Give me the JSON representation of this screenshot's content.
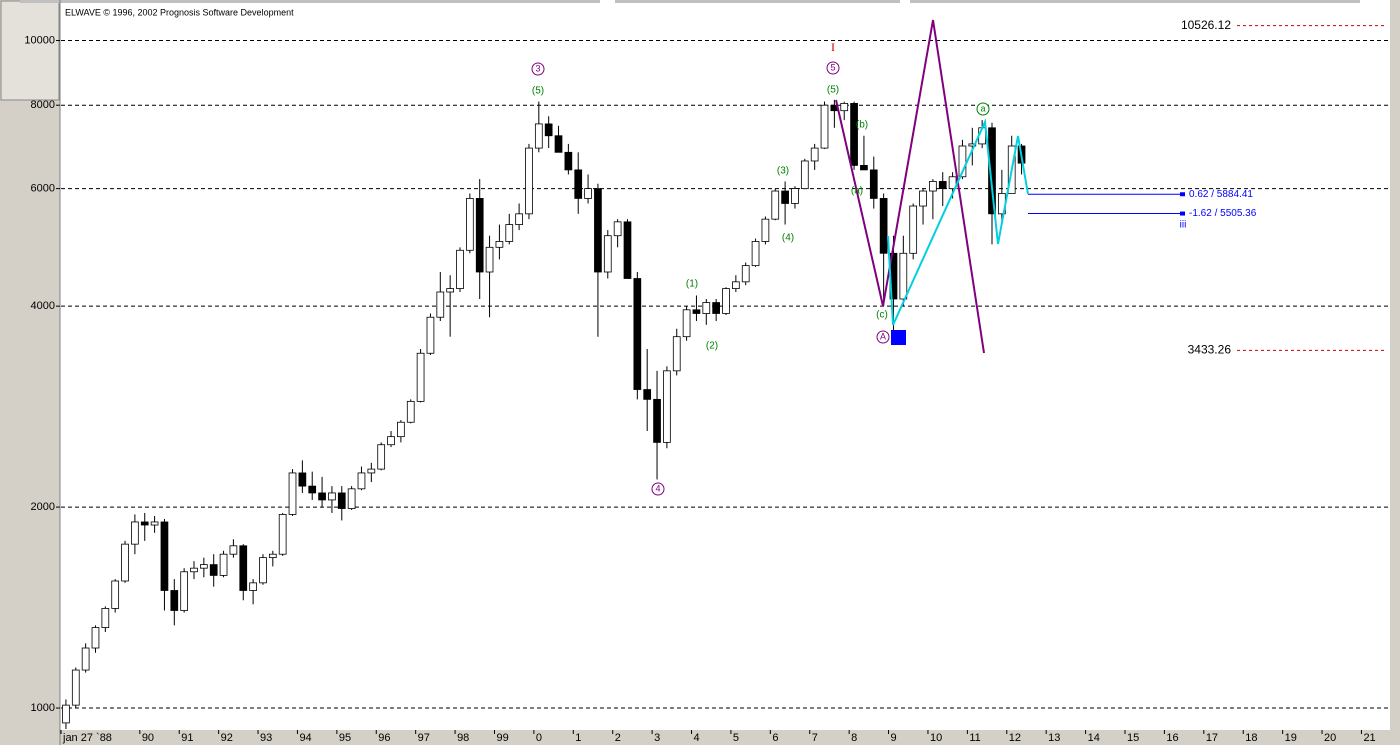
{
  "header": "ELWAVE © 1996, 2002 Prognosis Software Development",
  "annotations": [
    {
      "text": "3"
    },
    {
      "text": "(5)"
    },
    {
      "text": "I"
    },
    {
      "text": "5"
    },
    {
      "text": "(5)"
    },
    {
      "text": "(b)"
    },
    {
      "text": "(a)"
    },
    {
      "text": "(3)"
    },
    {
      "text": "(4)"
    },
    {
      "text": "(1)"
    },
    {
      "text": "(2)"
    },
    {
      "text": "4"
    },
    {
      "text": "(c)"
    },
    {
      "text": "A"
    },
    {
      "text": "a"
    },
    {
      "text": "iii"
    }
  ],
  "chart_data": {
    "type": "candlestick",
    "log_scale": true,
    "grid": true,
    "up_color": "#ffffff",
    "down_color": "#000000",
    "xlim": [
      1988,
      2021.75
    ],
    "ylim": [
      927,
      11500
    ],
    "yticks": [
      1000,
      2000,
      4000,
      6000,
      8000,
      10000
    ],
    "xticks": [
      {
        "value": 1988,
        "label": "jan 27 `88"
      },
      {
        "value": 1990,
        "label": "90"
      },
      {
        "value": 1991,
        "label": "91"
      },
      {
        "value": 1992,
        "label": "92"
      },
      {
        "value": 1993,
        "label": "93"
      },
      {
        "value": 1994,
        "label": "94"
      },
      {
        "value": 1995,
        "label": "95"
      },
      {
        "value": 1996,
        "label": "96"
      },
      {
        "value": 1997,
        "label": "97"
      },
      {
        "value": 1998,
        "label": "98"
      },
      {
        "value": 1999,
        "label": "99"
      },
      {
        "value": 2000,
        "label": "0"
      },
      {
        "value": 2001,
        "label": "1"
      },
      {
        "value": 2002,
        "label": "2"
      },
      {
        "value": 2003,
        "label": "3"
      },
      {
        "value": 2004,
        "label": "4"
      },
      {
        "value": 2005,
        "label": "5"
      },
      {
        "value": 2006,
        "label": "6"
      },
      {
        "value": 2007,
        "label": "7"
      },
      {
        "value": 2008,
        "label": "8"
      },
      {
        "value": 2009,
        "label": "9"
      },
      {
        "value": 2010,
        "label": "10"
      },
      {
        "value": 2011,
        "label": "11"
      },
      {
        "value": 2012,
        "label": "12"
      },
      {
        "value": 2013,
        "label": "13"
      },
      {
        "value": 2014,
        "label": "14"
      },
      {
        "value": 2015,
        "label": "15"
      },
      {
        "value": 2016,
        "label": "16"
      },
      {
        "value": 2017,
        "label": "17"
      },
      {
        "value": 2018,
        "label": "18"
      },
      {
        "value": 2019,
        "label": "19"
      },
      {
        "value": 2020,
        "label": "20"
      },
      {
        "value": 2021,
        "label": "21"
      }
    ],
    "x": [
      1988.125,
      1988.375,
      1988.625,
      1988.875,
      1989.125,
      1989.375,
      1989.625,
      1989.875,
      1990.125,
      1990.375,
      1990.625,
      1990.875,
      1991.125,
      1991.375,
      1991.625,
      1991.875,
      1992.125,
      1992.375,
      1992.625,
      1992.875,
      1993.125,
      1993.375,
      1993.625,
      1993.875,
      1994.125,
      1994.375,
      1994.625,
      1994.875,
      1995.125,
      1995.375,
      1995.625,
      1995.875,
      1996.125,
      1996.375,
      1996.625,
      1996.875,
      1997.125,
      1997.375,
      1997.625,
      1997.875,
      1998.125,
      1998.375,
      1998.625,
      1998.875,
      1999.125,
      1999.375,
      1999.625,
      1999.875,
      2000.125,
      2000.375,
      2000.625,
      2000.875,
      2001.125,
      2001.375,
      2001.625,
      2001.875,
      2002.125,
      2002.375,
      2002.625,
      2002.875,
      2003.125,
      2003.375,
      2003.625,
      2003.875,
      2004.125,
      2004.375,
      2004.625,
      2004.875,
      2005.125,
      2005.375,
      2005.625,
      2005.875,
      2006.125,
      2006.375,
      2006.625,
      2006.875,
      2007.125,
      2007.375,
      2007.625,
      2007.875,
      2008.125,
      2008.375,
      2008.625,
      2008.875,
      2009.125,
      2009.375,
      2009.625,
      2009.875,
      2010.125,
      2010.375,
      2010.625,
      2010.875,
      2011.125,
      2011.375,
      2011.625,
      2011.875,
      2012.125,
      2012.375
    ],
    "open": [
      950,
      1010,
      1140,
      1230,
      1320,
      1410,
      1550,
      1760,
      1900,
      1880,
      1900,
      1500,
      1400,
      1600,
      1620,
      1640,
      1580,
      1700,
      1750,
      1500,
      1540,
      1680,
      1700,
      1950,
      2250,
      2150,
      2100,
      2050,
      2100,
      1990,
      2130,
      2250,
      2280,
      2480,
      2550,
      2680,
      2880,
      3400,
      3850,
      4200,
      4250,
      4850,
      5800,
      4500,
      4900,
      5000,
      5300,
      5500,
      6900,
      7500,
      7200,
      6800,
      6400,
      5800,
      6000,
      4500,
      5100,
      5350,
      4400,
      3000,
      2900,
      2500,
      3200,
      3600,
      3950,
      3900,
      4050,
      3900,
      4250,
      4350,
      4600,
      5000,
      5400,
      5950,
      5700,
      6000,
      6600,
      6900,
      8000,
      7850,
      8050,
      6500,
      6400,
      5800,
      4800,
      4100,
      4800,
      5650,
      5950,
      6150,
      6000,
      6250,
      6950,
      7000,
      7400,
      5500,
      5900,
      6950
    ],
    "high": [
      1030,
      1150,
      1250,
      1330,
      1420,
      1560,
      1780,
      1950,
      1960,
      1940,
      1920,
      1560,
      1620,
      1660,
      1680,
      1700,
      1720,
      1790,
      1760,
      1560,
      1700,
      1720,
      1960,
      2280,
      2350,
      2260,
      2220,
      2150,
      2150,
      2150,
      2300,
      2330,
      2500,
      2600,
      2700,
      2900,
      3450,
      3900,
      4500,
      4450,
      4900,
      5900,
      6200,
      5100,
      5300,
      5500,
      5700,
      7000,
      8100,
      7700,
      7450,
      7000,
      6800,
      6300,
      6100,
      5200,
      5400,
      5400,
      4500,
      3450,
      3200,
      3250,
      3700,
      4000,
      4150,
      4100,
      4100,
      4270,
      4450,
      4650,
      5050,
      5450,
      6000,
      6150,
      6050,
      6650,
      7000,
      8100,
      8150,
      8100,
      8100,
      7200,
      6700,
      5900,
      5100,
      5100,
      5700,
      6000,
      6200,
      6350,
      6350,
      7100,
      7400,
      7600,
      7530,
      6400,
      7200,
      7000
    ],
    "low": [
      930,
      1000,
      1130,
      1210,
      1300,
      1390,
      1540,
      1700,
      1780,
      1830,
      1400,
      1330,
      1390,
      1560,
      1570,
      1520,
      1570,
      1680,
      1450,
      1430,
      1530,
      1630,
      1690,
      1940,
      2100,
      2050,
      2000,
      1960,
      1910,
      1980,
      2120,
      2180,
      2270,
      2460,
      2500,
      2670,
      2870,
      3380,
      3800,
      3600,
      4200,
      4800,
      4100,
      3850,
      4700,
      4950,
      5200,
      5400,
      6800,
      6900,
      6800,
      6300,
      5500,
      5700,
      3600,
      4400,
      4900,
      4400,
      2900,
      2600,
      2200,
      2450,
      3150,
      3550,
      3800,
      3750,
      3800,
      3880,
      4200,
      4300,
      4580,
      4950,
      5380,
      5300,
      5600,
      5990,
      6400,
      6880,
      7400,
      7600,
      6400,
      6400,
      5600,
      4000,
      3650,
      4000,
      4700,
      5300,
      5400,
      5650,
      5800,
      6200,
      6500,
      6900,
      4950,
      5300,
      5900,
      6300
    ],
    "close": [
      1010,
      1140,
      1230,
      1320,
      1410,
      1550,
      1760,
      1900,
      1880,
      1900,
      1500,
      1400,
      1600,
      1620,
      1640,
      1580,
      1700,
      1750,
      1500,
      1540,
      1680,
      1700,
      1950,
      2250,
      2150,
      2100,
      2050,
      2100,
      1990,
      2130,
      2250,
      2280,
      2480,
      2550,
      2680,
      2880,
      3400,
      3850,
      4200,
      4250,
      4850,
      5800,
      4500,
      4900,
      5000,
      5300,
      5500,
      6900,
      7500,
      7200,
      6800,
      6400,
      5800,
      6000,
      4500,
      5100,
      5350,
      4400,
      3000,
      2900,
      2500,
      3200,
      3600,
      3950,
      3900,
      4050,
      3900,
      4250,
      4350,
      4600,
      5000,
      5400,
      5950,
      5700,
      6000,
      6600,
      6900,
      8000,
      7850,
      8050,
      6500,
      6400,
      5800,
      4800,
      4100,
      4800,
      5650,
      5950,
      6150,
      6000,
      6250,
      6950,
      7000,
      7400,
      5500,
      5900,
      6950,
      6550
    ],
    "levels": [
      {
        "value": 10526.12,
        "color": "#cc0000"
      },
      {
        "value": 3433.26,
        "color": "#cc0000"
      }
    ],
    "fib_levels": [
      {
        "value": 5884.41,
        "label": "0.62 / 5884.41",
        "color": "#0000ff"
      },
      {
        "value": 5505.36,
        "label": "-1.62 / 5505.36",
        "color": "#0000ff"
      }
    ]
  }
}
